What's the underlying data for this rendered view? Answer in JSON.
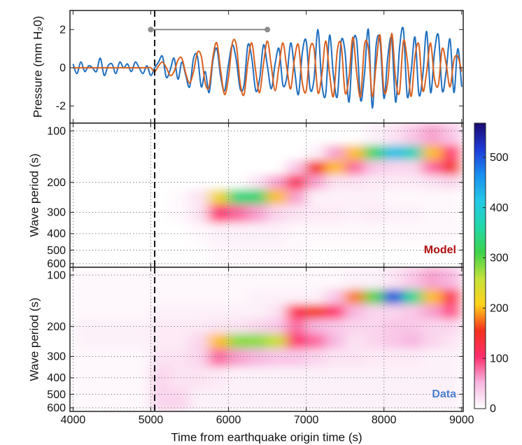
{
  "chart_data": [
    {
      "type": "line",
      "ylabel": "Pressure (mm H₂0)",
      "x": [
        4000,
        4050,
        4100,
        4150,
        4200,
        4250,
        4300,
        4350,
        4400,
        4450,
        4500,
        4550,
        4600,
        4650,
        4700,
        4750,
        4800,
        4850,
        4900,
        4950,
        5000,
        5050,
        5100,
        5150,
        5200,
        5250,
        5300,
        5350,
        5400,
        5450,
        5500,
        5550,
        5600,
        5650,
        5700,
        5750,
        5800,
        5850,
        5900,
        5950,
        6000,
        6050,
        6100,
        6150,
        6200,
        6250,
        6300,
        6350,
        6400,
        6450,
        6500,
        6550,
        6600,
        6650,
        6700,
        6750,
        6800,
        6850,
        6900,
        6950,
        7000,
        7050,
        7100,
        7150,
        7200,
        7250,
        7300,
        7350,
        7400,
        7450,
        7500,
        7550,
        7600,
        7650,
        7700,
        7750,
        7800,
        7850,
        7900,
        7950,
        8000,
        8050,
        8100,
        8150,
        8200,
        8250,
        8300,
        8350,
        8400,
        8450,
        8500,
        8550,
        8600,
        8650,
        8700,
        8750,
        8800,
        8850,
        8900,
        8950,
        9000
      ],
      "series": [
        {
          "color": "#1f6fbf",
          "values": [
            0.2,
            -0.3,
            0.3,
            -0.2,
            0.1,
            0.0,
            -0.2,
            0.5,
            -0.4,
            0.1,
            0.2,
            -0.3,
            0.3,
            0.0,
            0.2,
            -0.2,
            0.3,
            0.0,
            -0.3,
            0.1,
            -0.4,
            0.0,
            0.3,
            0.6,
            -0.5,
            -0.1,
            0.5,
            -0.6,
            0.3,
            -0.4,
            -1.0,
            0.5,
            0.6,
            -1.0,
            -0.2,
            -1.3,
            0.4,
            1.0,
            -0.5,
            -1.2,
            0.2,
            1.2,
            0.4,
            -1.1,
            -0.9,
            1.2,
            0.5,
            -1.2,
            -0.6,
            1.2,
            0.1,
            -1.1,
            0.2,
            1.0,
            -0.9,
            -0.5,
            1.3,
            -0.1,
            -1.4,
            0.8,
            1.4,
            -1.1,
            -0.6,
            2.0,
            -0.8,
            -1.4,
            1.7,
            -0.4,
            -1.5,
            1.4,
            0.8,
            -1.8,
            1.2,
            1.4,
            -1.7,
            -0.3,
            2.0,
            -2.1,
            1.2,
            1.4,
            -1.6,
            0.6,
            1.5,
            -1.8,
            1.0,
            2.0,
            -1.5,
            -0.2,
            1.6,
            -1.4,
            -0.4,
            1.9,
            -1.3,
            0.8,
            1.7,
            -1.2,
            -0.2,
            1.5,
            -1.3,
            1.0,
            -1.0
          ]
        },
        {
          "color": "#d9601f",
          "values": [
            0,
            0,
            0,
            0,
            0,
            0,
            0,
            0,
            0,
            0,
            0,
            0,
            0,
            0,
            0,
            0,
            0,
            0,
            0,
            0,
            0.0,
            -0.2,
            0.1,
            0.3,
            0.0,
            -0.4,
            -0.2,
            0.4,
            0.5,
            -0.3,
            -0.8,
            -0.2,
            0.8,
            0.6,
            -0.8,
            -1.0,
            0.6,
            1.3,
            -0.2,
            -1.4,
            -0.5,
            1.3,
            1.2,
            -0.8,
            -1.4,
            0.3,
            1.3,
            -0.2,
            -1.3,
            0.2,
            1.4,
            0.1,
            -1.2,
            0.1,
            1.3,
            0.0,
            -1.1,
            0.5,
            1.2,
            -0.8,
            -1.2,
            1.0,
            1.0,
            -1.3,
            -0.4,
            1.4,
            -0.3,
            -1.5,
            0.9,
            1.2,
            -1.3,
            -0.5,
            1.6,
            -0.3,
            -1.5,
            1.2,
            1.0,
            -1.5,
            0.2,
            1.7,
            -1.2,
            -0.7,
            1.8,
            -0.6,
            -1.3,
            1.4,
            0.4,
            -1.5,
            0.6,
            1.2,
            -1.2,
            -0.2,
            1.3,
            -0.6,
            -0.9,
            1.0,
            0.2,
            -1.0,
            0.4,
            0.6,
            -0.2
          ]
        }
      ],
      "xlim": [
        3960,
        9020
      ],
      "xticks": [
        4000,
        5000,
        6000,
        7000,
        8000,
        9000
      ],
      "ylim": [
        -2.9,
        3.0
      ],
      "yticks": [
        -2,
        0,
        2
      ],
      "vline": 5050,
      "span": {
        "x": [
          5000,
          6500
        ],
        "y": 2,
        "color": "#8c8c8c"
      }
    },
    {
      "type": "heatmap",
      "ylabel": "Wave period (s)",
      "label": "Model",
      "label_color": "#b00d0d",
      "log_y": true,
      "grid": true,
      "colorbar": true,
      "x": [
        4125,
        4375,
        4625,
        4875,
        5125,
        5375,
        5625,
        5875,
        6125,
        6375,
        6625,
        6875,
        7125,
        7375,
        7625,
        7875,
        8125,
        8375,
        8625,
        8875
      ],
      "y": [
        110,
        135,
        165,
        200,
        245,
        300,
        400,
        550
      ],
      "z": [
        [
          0,
          0,
          0,
          0,
          0,
          0,
          0,
          0,
          0,
          0,
          0,
          0,
          0,
          0,
          0,
          10,
          20,
          40,
          60,
          40
        ],
        [
          0,
          0,
          0,
          0,
          0,
          0,
          0,
          0,
          0,
          0,
          0,
          0,
          10,
          60,
          200,
          330,
          420,
          380,
          200,
          100
        ],
        [
          0,
          0,
          0,
          0,
          0,
          0,
          0,
          0,
          0,
          0,
          0,
          40,
          150,
          200,
          80,
          40,
          30,
          30,
          80,
          150
        ],
        [
          0,
          0,
          0,
          0,
          0,
          0,
          0,
          0,
          0,
          20,
          60,
          120,
          60,
          20,
          20,
          15,
          15,
          15,
          20,
          30
        ],
        [
          0,
          0,
          0,
          0,
          0,
          5,
          20,
          220,
          340,
          330,
          200,
          60,
          10,
          10,
          10,
          10,
          5,
          5,
          5,
          5
        ],
        [
          0,
          0,
          0,
          0,
          0,
          5,
          20,
          100,
          80,
          60,
          30,
          20,
          15,
          15,
          10,
          15,
          10,
          10,
          5,
          5
        ],
        [
          0,
          0,
          0,
          0,
          0,
          0,
          5,
          10,
          10,
          10,
          10,
          5,
          5,
          5,
          5,
          5,
          5,
          5,
          5,
          5
        ],
        [
          0,
          0,
          0,
          0,
          0,
          0,
          0,
          5,
          5,
          5,
          5,
          5,
          0,
          0,
          0,
          0,
          0,
          0,
          0,
          0
        ]
      ],
      "xlim": [
        3960,
        9020
      ],
      "xticks": [
        4000,
        5000,
        6000,
        7000,
        8000,
        9000
      ],
      "ylim": [
        90,
        630
      ],
      "yticks": [
        100,
        200,
        300,
        400,
        500,
        600
      ],
      "zlim": [
        0,
        568
      ],
      "zticks": [
        0,
        100,
        200,
        300,
        400,
        500
      ],
      "colormap": [
        "#ffffff",
        "#f7b6e0",
        "#ff2e6e",
        "#f4311e",
        "#ffd11a",
        "#c5e23a",
        "#3fd24a",
        "#22d8a8",
        "#25c8e6",
        "#1a8ff0",
        "#1f3ad8",
        "#1b0a6e"
      ],
      "vline": 5050
    },
    {
      "type": "heatmap",
      "ylabel": "Wave period (s)",
      "label": "Data",
      "label_color": "#4a7fd0",
      "log_y": true,
      "grid": true,
      "xlabel": "Time from earthquake origin time (s)",
      "x": [
        4125,
        4375,
        4625,
        4875,
        5125,
        5375,
        5625,
        5875,
        6125,
        6375,
        6625,
        6875,
        7125,
        7375,
        7625,
        7875,
        8125,
        8375,
        8625,
        8875
      ],
      "y": [
        110,
        135,
        165,
        200,
        245,
        300,
        400,
        550
      ],
      "z": [
        [
          5,
          5,
          5,
          5,
          5,
          5,
          5,
          5,
          5,
          5,
          5,
          5,
          5,
          5,
          10,
          10,
          20,
          40,
          60,
          50
        ],
        [
          5,
          5,
          5,
          5,
          5,
          5,
          5,
          5,
          5,
          10,
          10,
          10,
          10,
          40,
          180,
          300,
          500,
          350,
          200,
          120
        ],
        [
          5,
          5,
          5,
          5,
          10,
          10,
          10,
          10,
          10,
          10,
          20,
          120,
          160,
          100,
          50,
          30,
          30,
          40,
          60,
          90
        ],
        [
          10,
          10,
          10,
          10,
          15,
          15,
          15,
          20,
          20,
          30,
          40,
          80,
          50,
          40,
          30,
          30,
          40,
          40,
          30,
          30
        ],
        [
          10,
          10,
          10,
          10,
          15,
          15,
          30,
          200,
          280,
          280,
          250,
          100,
          80,
          50,
          20,
          30,
          40,
          50,
          30,
          20
        ],
        [
          5,
          5,
          5,
          5,
          20,
          20,
          30,
          80,
          60,
          50,
          40,
          40,
          30,
          20,
          20,
          15,
          15,
          15,
          10,
          10
        ],
        [
          5,
          5,
          5,
          5,
          30,
          20,
          20,
          15,
          10,
          10,
          10,
          10,
          10,
          10,
          10,
          10,
          10,
          10,
          10,
          10
        ],
        [
          5,
          5,
          5,
          5,
          30,
          30,
          10,
          10,
          10,
          10,
          10,
          10,
          10,
          10,
          10,
          10,
          10,
          10,
          10,
          10
        ]
      ],
      "xlim": [
        3960,
        9020
      ],
      "xticks": [
        4000,
        5000,
        6000,
        7000,
        8000,
        9000
      ],
      "ylim": [
        90,
        630
      ],
      "yticks": [
        100,
        200,
        300,
        400,
        500,
        600
      ],
      "zlim": [
        0,
        568
      ],
      "zticks": [
        0,
        100,
        200,
        300,
        400,
        500
      ],
      "colormap": [
        "#ffffff",
        "#f7b6e0",
        "#ff2e6e",
        "#f4311e",
        "#ffd11a",
        "#c5e23a",
        "#3fd24a",
        "#22d8a8",
        "#25c8e6",
        "#1a8ff0",
        "#1f3ad8",
        "#1b0a6e"
      ],
      "vline": 5050
    }
  ]
}
